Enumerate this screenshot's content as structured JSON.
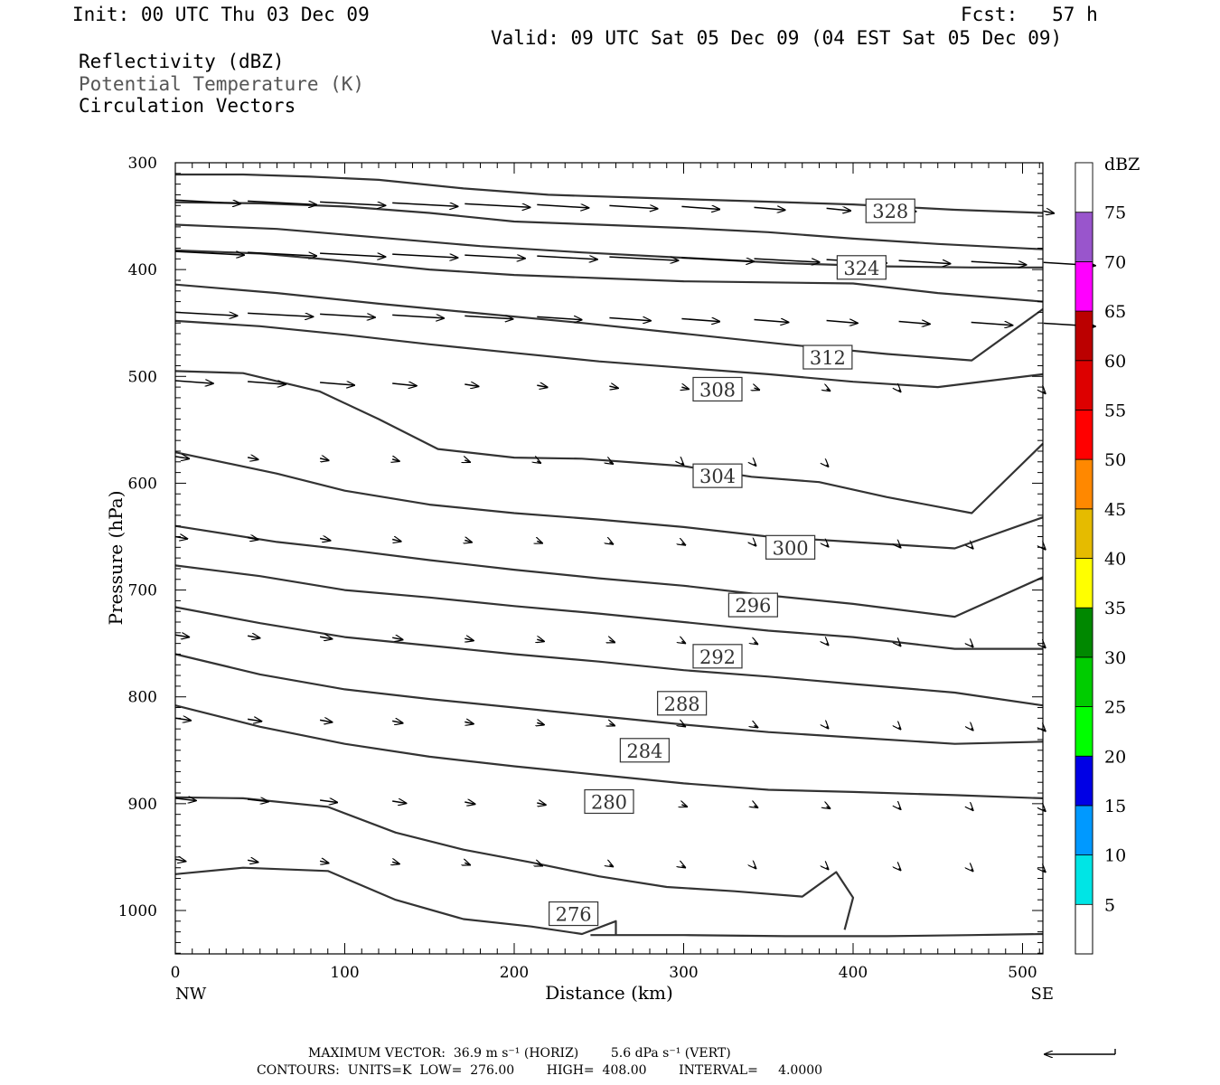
{
  "header": {
    "init": "Init: 00 UTC Thu 03 Dec 09",
    "fcst": "Fcst:   57 h",
    "valid": "Valid: 09 UTC Sat 05 Dec 09 (04 EST Sat 05 Dec 09)",
    "fields": [
      "Reflectivity (dBZ)",
      "Potential Temperature (K)",
      "Circulation Vectors"
    ]
  },
  "chart_data": {
    "type": "line",
    "xlabel": "Distance (km)",
    "ylabel": "Pressure (hPa)",
    "xlim": [
      0,
      512
    ],
    "ylim": [
      1040,
      300
    ],
    "x_ticks": [
      0,
      100,
      200,
      300,
      400,
      500
    ],
    "y_ticks": [
      300,
      400,
      500,
      600,
      700,
      800,
      900,
      1000
    ],
    "x_end_labels": {
      "left": "NW",
      "right": "SE"
    },
    "contour_labels_style": "boxed",
    "series": [
      {
        "label": "",
        "x": [
          0,
          40,
          80,
          120,
          170,
          220,
          280,
          340,
          400,
          460,
          512
        ],
        "y": [
          311,
          311,
          313,
          316,
          324,
          330,
          333,
          336,
          339,
          344,
          347
        ],
        "label_at": null
      },
      {
        "label": "328",
        "x": [
          0,
          50,
          100,
          150,
          200,
          250,
          300,
          350,
          400,
          450,
          512
        ],
        "y": [
          337,
          338,
          341,
          347,
          355,
          358,
          361,
          365,
          371,
          376,
          381
        ],
        "label_at": [
          422,
          345
        ]
      },
      {
        "label": "",
        "x": [
          0,
          60,
          120,
          180,
          240,
          300,
          360,
          420,
          470,
          512
        ],
        "y": [
          358,
          362,
          370,
          378,
          384,
          389,
          394,
          397,
          398,
          398
        ],
        "label_at": null
      },
      {
        "label": "324",
        "x": [
          0,
          50,
          100,
          150,
          200,
          250,
          300,
          350,
          400,
          450,
          512
        ],
        "y": [
          382,
          385,
          392,
          400,
          405,
          408,
          411,
          412,
          413,
          422,
          430
        ],
        "label_at": [
          405,
          398
        ]
      },
      {
        "label": "",
        "x": [
          0,
          60,
          120,
          180,
          240,
          300,
          360,
          420,
          470,
          512
        ],
        "y": [
          414,
          422,
          432,
          441,
          450,
          460,
          470,
          479,
          485,
          437
        ],
        "label_at": null
      },
      {
        "label": "312",
        "x": [
          0,
          50,
          100,
          150,
          200,
          250,
          300,
          350,
          400,
          450,
          512
        ],
        "y": [
          448,
          453,
          461,
          470,
          478,
          486,
          492,
          498,
          505,
          510,
          498
        ],
        "label_at": [
          385,
          482
        ]
      },
      {
        "label": "308",
        "x": [
          0,
          40,
          85,
          120,
          155,
          200,
          240,
          300,
          340,
          380,
          420,
          470,
          512
        ],
        "y": [
          495,
          497,
          514,
          540,
          568,
          576,
          577,
          584,
          594,
          599,
          613,
          628,
          563
        ],
        "label_at": [
          320,
          512
        ]
      },
      {
        "label": "304",
        "x": [
          0,
          60,
          100,
          150,
          200,
          250,
          300,
          350,
          400,
          460,
          512
        ],
        "y": [
          571,
          591,
          607,
          620,
          628,
          634,
          641,
          650,
          655,
          661,
          632
        ],
        "label_at": [
          320,
          593
        ]
      },
      {
        "label": "300",
        "x": [
          0,
          60,
          100,
          150,
          200,
          250,
          300,
          350,
          400,
          460,
          512
        ],
        "y": [
          640,
          655,
          662,
          672,
          681,
          689,
          696,
          705,
          713,
          725,
          688
        ],
        "label_at": [
          363,
          660
        ]
      },
      {
        "label": "296",
        "x": [
          0,
          50,
          100,
          150,
          200,
          250,
          300,
          350,
          400,
          460,
          512
        ],
        "y": [
          677,
          687,
          700,
          707,
          715,
          722,
          730,
          738,
          744,
          755,
          755
        ],
        "label_at": [
          341,
          714
        ]
      },
      {
        "label": "292",
        "x": [
          0,
          50,
          100,
          150,
          200,
          250,
          300,
          350,
          400,
          460,
          512
        ],
        "y": [
          716,
          731,
          744,
          752,
          760,
          767,
          775,
          781,
          788,
          796,
          808
        ],
        "label_at": [
          320,
          762
        ]
      },
      {
        "label": "288",
        "x": [
          0,
          50,
          100,
          150,
          200,
          250,
          300,
          350,
          400,
          460,
          512
        ],
        "y": [
          760,
          779,
          793,
          802,
          810,
          818,
          826,
          833,
          838,
          844,
          842
        ],
        "label_at": [
          299,
          806
        ]
      },
      {
        "label": "284",
        "x": [
          0,
          50,
          100,
          150,
          200,
          250,
          300,
          350,
          400,
          460,
          512
        ],
        "y": [
          808,
          828,
          844,
          856,
          865,
          873,
          881,
          887,
          889,
          892,
          895
        ],
        "label_at": [
          277,
          850
        ]
      },
      {
        "label": "280",
        "x": [
          0,
          40,
          90,
          130,
          170,
          210,
          250,
          290,
          330,
          370,
          390,
          400,
          395
        ],
        "y": [
          894,
          895,
          903,
          927,
          943,
          955,
          968,
          978,
          982,
          987,
          964,
          988,
          1018
        ],
        "label_at": [
          256,
          898
        ]
      },
      {
        "label": "276",
        "x": [
          0,
          40,
          90,
          130,
          170,
          210,
          240,
          260,
          260
        ],
        "y": [
          966,
          960,
          963,
          990,
          1008,
          1015,
          1022,
          1010,
          1023
        ],
        "label_at": [
          235,
          1003
        ]
      },
      {
        "label": "",
        "x": [
          245,
          300,
          360,
          420,
          470,
          512
        ],
        "y": [
          1023,
          1023,
          1024,
          1024,
          1023,
          1022
        ],
        "label_at": null
      }
    ],
    "vectors_note": "Circulation vectors drawn as arrows",
    "colorbar": {
      "label": "dBZ",
      "levels": [
        5,
        10,
        15,
        20,
        25,
        30,
        35,
        40,
        45,
        50,
        55,
        60,
        65,
        70,
        75
      ],
      "colors": [
        "#00e5e5",
        "#0099ff",
        "#0000e5",
        "#00ff00",
        "#00cc00",
        "#008800",
        "#ffff00",
        "#e5bb00",
        "#ff8800",
        "#ff0000",
        "#dd0000",
        "#bb0000",
        "#ff00ff",
        "#9955cc",
        "#ffffff"
      ]
    }
  },
  "footer": {
    "line1": "MAXIMUM VECTOR:  36.9 m s⁻¹ (HORIZ)        5.6 dPa s⁻¹ (VERT)",
    "line2": "CONTOURS:  UNITS=K  LOW=  276.00        HIGH=  408.00        INTERVAL=     4.0000"
  }
}
